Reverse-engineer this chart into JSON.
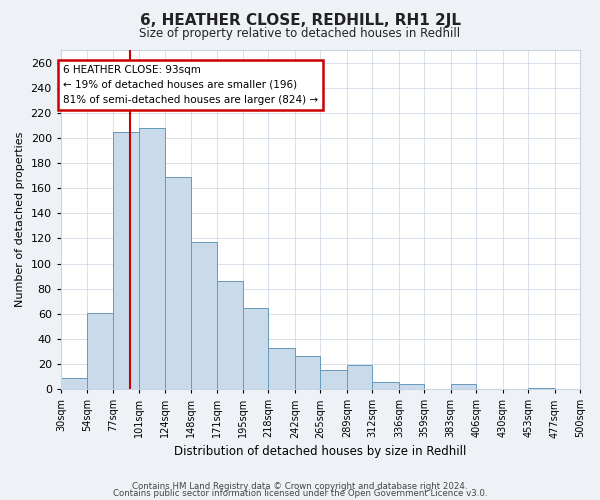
{
  "title": "6, HEATHER CLOSE, REDHILL, RH1 2JL",
  "subtitle": "Size of property relative to detached houses in Redhill",
  "xlabel": "Distribution of detached houses by size in Redhill",
  "ylabel": "Number of detached properties",
  "bar_edges": [
    30,
    54,
    77,
    101,
    124,
    148,
    171,
    195,
    218,
    242,
    265,
    289,
    312,
    336,
    359,
    383,
    406,
    430,
    453,
    477,
    500
  ],
  "bar_heights": [
    9,
    61,
    205,
    208,
    169,
    117,
    86,
    65,
    33,
    26,
    15,
    19,
    6,
    4,
    0,
    4,
    0,
    0,
    1,
    0
  ],
  "bar_color": "#c9daea",
  "bar_edge_color": "#6699bb",
  "vline_x": 93,
  "vline_color": "#cc0000",
  "ylim": [
    0,
    270
  ],
  "yticks": [
    0,
    20,
    40,
    60,
    80,
    100,
    120,
    140,
    160,
    180,
    200,
    220,
    240,
    260
  ],
  "tick_labels": [
    "30sqm",
    "54sqm",
    "77sqm",
    "101sqm",
    "124sqm",
    "148sqm",
    "171sqm",
    "195sqm",
    "218sqm",
    "242sqm",
    "265sqm",
    "289sqm",
    "312sqm",
    "336sqm",
    "359sqm",
    "383sqm",
    "406sqm",
    "430sqm",
    "453sqm",
    "477sqm",
    "500sqm"
  ],
  "annotation_title": "6 HEATHER CLOSE: 93sqm",
  "annotation_line1": "← 19% of detached houses are smaller (196)",
  "annotation_line2": "81% of semi-detached houses are larger (824) →",
  "footnote1": "Contains HM Land Registry data © Crown copyright and database right 2024.",
  "footnote2": "Contains public sector information licensed under the Open Government Licence v3.0.",
  "bg_color": "#eef2f7",
  "plot_bg_color": "#ffffff",
  "grid_color": "#c8d4e4"
}
